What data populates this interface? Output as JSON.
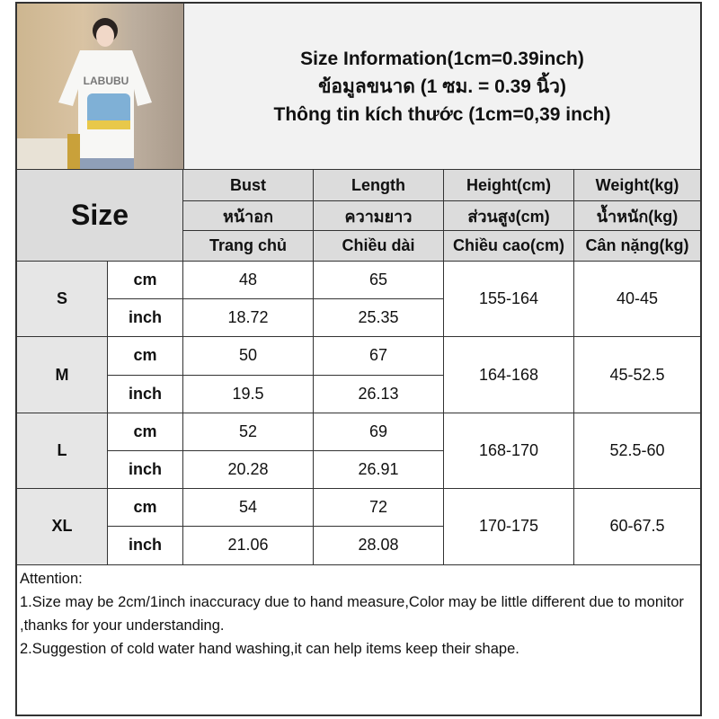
{
  "product_photo": {
    "alt_text_visible": "LABUBU"
  },
  "title": {
    "line1": "Size Information(1cm=0.39inch)",
    "line2": "ข้อมูลขนาด (1 ซม. = 0.39 นิ้ว)",
    "line3": "Thông tin kích thước (1cm=0,39 inch)"
  },
  "table": {
    "size_header": "Size",
    "columns": [
      {
        "en": "Bust",
        "th": "หน้าอก",
        "vi": "Trang chủ"
      },
      {
        "en": "Length",
        "th": "ความยาว",
        "vi": "Chiều dài"
      },
      {
        "en": "Height(cm)",
        "th": "ส่วนสูง(cm)",
        "vi": "Chiều cao(cm)"
      },
      {
        "en": "Weight(kg)",
        "th": "น้ำหนัก(kg)",
        "vi": "Cân nặng(kg)"
      }
    ],
    "units": {
      "cm": "cm",
      "inch": "inch"
    },
    "rows": [
      {
        "size": "S",
        "bust_cm": "48",
        "length_cm": "65",
        "bust_inch": "18.72",
        "length_inch": "25.35",
        "height": "155-164",
        "weight": "40-45"
      },
      {
        "size": "M",
        "bust_cm": "50",
        "length_cm": "67",
        "bust_inch": "19.5",
        "length_inch": "26.13",
        "height": "164-168",
        "weight": "45-52.5"
      },
      {
        "size": "L",
        "bust_cm": "52",
        "length_cm": "69",
        "bust_inch": "20.28",
        "length_inch": "26.91",
        "height": "168-170",
        "weight": "52.5-60"
      },
      {
        "size": "XL",
        "bust_cm": "54",
        "length_cm": "72",
        "bust_inch": "21.06",
        "length_inch": "28.08",
        "height": "170-175",
        "weight": "60-67.5"
      }
    ]
  },
  "notes": {
    "heading": "Attention:",
    "line1": "1.Size may be 2cm/1inch inaccuracy due to hand measure,Color may be little different due to monitor ,thanks for your understanding.",
    "line2": "2.Suggestion of cold water hand washing,it can help items keep their shape."
  }
}
